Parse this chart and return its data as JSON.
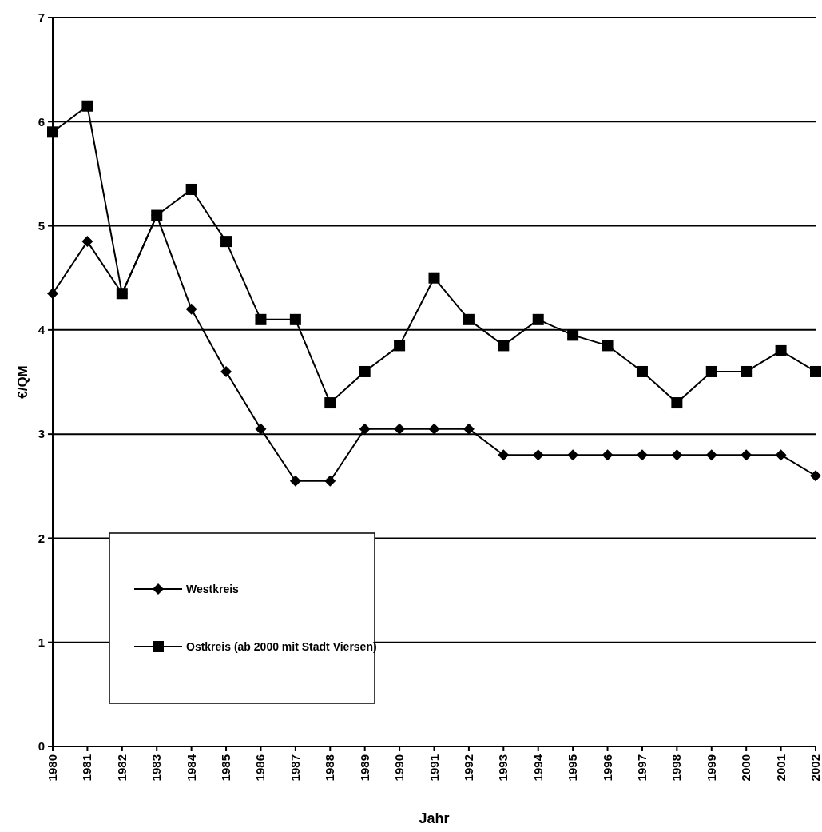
{
  "chart_data": {
    "type": "line",
    "xlabel": "Jahr",
    "ylabel": "€/QM",
    "categories": [
      "1980",
      "1981",
      "1982",
      "1983",
      "1984",
      "1985",
      "1986",
      "1987",
      "1988",
      "1989",
      "1990",
      "1991",
      "1992",
      "1993",
      "1994",
      "1995",
      "1996",
      "1997",
      "1998",
      "1999",
      "2000",
      "2001",
      "2002"
    ],
    "series": [
      {
        "name": "Westkreis",
        "color": "#000000",
        "marker": "diamond",
        "values": [
          4.35,
          4.85,
          4.35,
          5.1,
          4.2,
          3.6,
          3.05,
          2.55,
          2.55,
          3.05,
          3.05,
          3.05,
          3.05,
          2.8,
          2.8,
          2.8,
          2.8,
          2.8,
          2.8,
          2.8,
          2.8,
          2.8,
          2.6
        ]
      },
      {
        "name": "Ostkreis (ab 2000 mit Stadt Viersen)",
        "color": "#000000",
        "marker": "square",
        "values": [
          5.9,
          6.15,
          4.35,
          5.1,
          5.35,
          4.85,
          4.1,
          4.1,
          3.3,
          3.6,
          3.85,
          4.5,
          4.1,
          3.85,
          4.1,
          3.95,
          3.85,
          3.6,
          3.3,
          3.6,
          3.6,
          3.8,
          3.6
        ]
      }
    ],
    "ylim": [
      0,
      7
    ],
    "yticks": [
      0,
      1,
      2,
      3,
      4,
      5,
      6,
      7
    ],
    "grid": "y",
    "legend": "bottom left",
    "line_style": "solid"
  }
}
